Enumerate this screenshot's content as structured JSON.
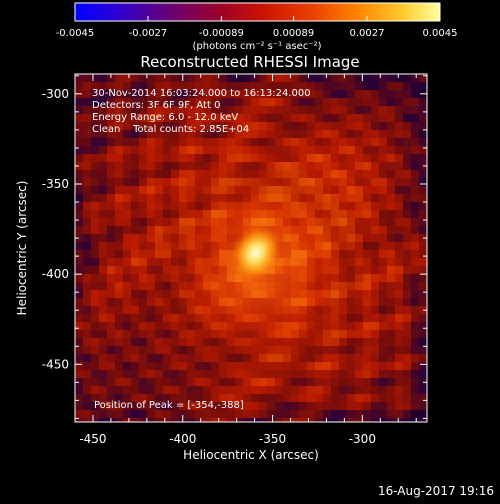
{
  "chart_data": {
    "type": "heatmap",
    "title": "Reconstructed RHESSI Image",
    "xlabel": "Heliocentric X (arcsec)",
    "ylabel": "Heliocentric Y (arcsec)",
    "xlim": [
      -460,
      -264
    ],
    "ylim": [
      -482,
      -289
    ],
    "x_ticks": [
      -450,
      -400,
      -350,
      -300
    ],
    "x_tick_labels": [
      "-450",
      "-400",
      "-350",
      "-300"
    ],
    "y_ticks": [
      -450,
      -400,
      -350,
      -300
    ],
    "y_tick_labels": [
      "-450",
      "-400",
      "-350",
      "-300"
    ],
    "peak": {
      "x": -354,
      "y": -388
    },
    "colormap": "black-purple-red-orange-yellow-white",
    "colorbar": {
      "range": [
        -0.0045,
        0.0045
      ],
      "ticks": [
        -0.0045,
        -0.0027,
        -0.00089,
        0.00089,
        0.0027,
        0.0045
      ],
      "tick_labels": [
        "-0.0045",
        "-0.0027",
        "-0.00089",
        "0.00089",
        "0.0027",
        "0.0045"
      ],
      "unit_label": "(photons cm⁻² s⁻¹ asec⁻²)"
    },
    "annotations": [
      "30-Nov-2014 16:03:24.000 to 16:13:24.000",
      "Detectors: 3F 6F 9F, Att 0",
      "Energy Range: 6.0 - 12.0 keV",
      "Clean    Total counts: 2.85E+04"
    ],
    "peak_label": "Position of Peak = [-354,-388]"
  },
  "footer": {
    "timestamp": "16-Aug-2017 19:16"
  },
  "colors": {
    "background": "#000000",
    "text": "#ffffff",
    "axis": "#ffffff"
  }
}
